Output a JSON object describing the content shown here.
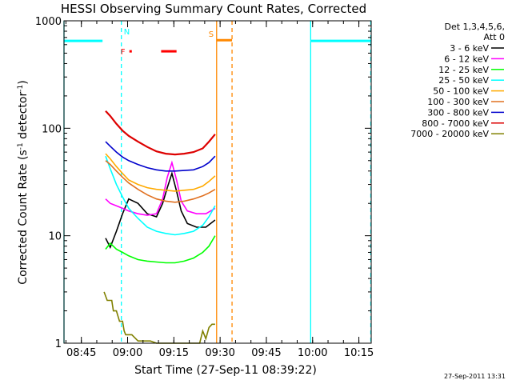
{
  "chart_data": {
    "type": "line",
    "title": "HESSI Observing Summary Count Rates, Corrected",
    "xlabel": "Start Time (27-Sep-11 08:39:22)",
    "ylabel": "Corrected Count Rate (s",
    "ylabel_sup1": "-1",
    "ylabel_mid": " detector",
    "ylabel_sup2": "-1",
    "ylabel_end": ")",
    "y_scale": "log",
    "ylim": [
      1,
      1000
    ],
    "xlim": [
      "08:39:22",
      "10:19:00"
    ],
    "x_ticks": [
      "08:45",
      "09:00",
      "09:15",
      "09:30",
      "09:45",
      "10:00",
      "10:15"
    ],
    "x_tick_minutes": [
      5.63,
      20.63,
      35.63,
      50.63,
      65.63,
      80.63,
      95.63
    ],
    "y_ticks": [
      "1",
      "10",
      "100",
      "1000"
    ],
    "y_tick_values": [
      1,
      10,
      100,
      1000
    ],
    "legend_header": [
      "Det 1,3,4,5,6,",
      "Att 0"
    ],
    "series": [
      {
        "name": "3 - 6 keV",
        "color": "#000000",
        "x": [
          13.5,
          15,
          17,
          19,
          21,
          24,
          27,
          30,
          32,
          33.5,
          35,
          36.5,
          38,
          40,
          43,
          46,
          49
        ],
        "y": [
          9.5,
          7.8,
          11,
          16,
          22,
          20,
          16,
          15,
          20,
          28,
          38,
          26,
          17,
          13,
          12,
          12,
          14
        ]
      },
      {
        "name": "6 - 12 keV",
        "color": "#ff00ff",
        "x": [
          13.5,
          15,
          17,
          19,
          21,
          24,
          27,
          30,
          32,
          33.5,
          35,
          36.5,
          38,
          40,
          43,
          46,
          49
        ],
        "y": [
          22,
          20,
          19,
          18,
          17,
          16,
          15.5,
          16,
          22,
          35,
          48,
          33,
          21,
          17,
          16,
          16,
          18
        ]
      },
      {
        "name": "12 - 25 keV",
        "color": "#00ff00",
        "x": [
          13.5,
          15,
          17,
          19,
          21,
          24,
          27,
          30,
          33,
          36,
          39,
          42,
          45,
          47,
          49
        ],
        "y": [
          7.5,
          8.5,
          7.5,
          7,
          6.5,
          6,
          5.8,
          5.7,
          5.6,
          5.6,
          5.8,
          6.2,
          7,
          8,
          10
        ]
      },
      {
        "name": "25 - 50 keV",
        "color": "#00ffff",
        "x": [
          13.5,
          15,
          17,
          19,
          21,
          24,
          27,
          30,
          33,
          36,
          39,
          42,
          45,
          47,
          49
        ],
        "y": [
          55,
          42,
          30,
          23,
          18,
          14.5,
          12,
          11,
          10.5,
          10.2,
          10.5,
          11,
          12.5,
          15,
          19
        ]
      },
      {
        "name": "50 - 100 keV",
        "color": "#ffaa00",
        "x": [
          13.5,
          15,
          17,
          19,
          21,
          24,
          27,
          30,
          33,
          36,
          39,
          42,
          45,
          47,
          49
        ],
        "y": [
          58,
          52,
          44,
          38,
          33,
          30,
          28,
          27,
          26.5,
          26,
          26.5,
          27,
          29,
          32,
          36
        ]
      },
      {
        "name": "100 - 300 keV",
        "color": "#e07020",
        "x": [
          13.5,
          15,
          17,
          19,
          21,
          24,
          27,
          30,
          33,
          36,
          39,
          42,
          45,
          47,
          49
        ],
        "y": [
          50,
          46,
          40,
          35,
          31,
          27,
          24,
          22,
          21,
          20.5,
          21,
          22,
          23.5,
          25,
          27
        ]
      },
      {
        "name": "300 - 800 keV",
        "color": "#0000cc",
        "x": [
          13.5,
          15,
          17,
          19,
          21,
          24,
          27,
          30,
          33,
          36,
          39,
          42,
          45,
          47,
          49
        ],
        "y": [
          75,
          68,
          60,
          54,
          50,
          46,
          43,
          41,
          40,
          40,
          40.5,
          41,
          44,
          48,
          55
        ]
      },
      {
        "name": "800 - 7000 keV",
        "color": "#dd0000",
        "x": [
          13.5,
          15,
          17,
          19,
          21,
          24,
          27,
          30,
          33,
          36,
          39,
          42,
          45,
          47,
          49
        ],
        "y": [
          145,
          130,
          110,
          95,
          85,
          75,
          67,
          61,
          58,
          57,
          58,
          60,
          65,
          75,
          88
        ]
      },
      {
        "name": "7000 - 20000 keV",
        "color": "#808000",
        "x": [
          13,
          14,
          15.5,
          16,
          17,
          18,
          19,
          19.5,
          20,
          22,
          24,
          26,
          28,
          30,
          32,
          34,
          36,
          38,
          40,
          42,
          44,
          45,
          46,
          47,
          48,
          49
        ],
        "y": [
          3,
          2.5,
          2.5,
          2,
          2,
          1.6,
          1.6,
          1.3,
          1.2,
          1.2,
          1.05,
          1.05,
          1.05,
          1.0,
          1.0,
          1.0,
          1.0,
          1.0,
          1.0,
          1.0,
          1.0,
          1.3,
          1.1,
          1.4,
          1.5,
          1.5
        ]
      }
    ],
    "orbit_segments": [
      {
        "label": "",
        "color": "#00ffff",
        "x0": 0,
        "x1": 12.5,
        "y": 650
      },
      {
        "label": "",
        "color": "#00ffff",
        "x0": 80,
        "x1": 99.5,
        "y": 650
      }
    ],
    "flag_markers": [
      {
        "label": "N",
        "color": "#00ffff",
        "x": 18.6,
        "y": 800
      },
      {
        "label": "F",
        "color": "#ff0000",
        "x": 18.6,
        "y": 520
      },
      {
        "label": "S",
        "color": "#ff8800",
        "x": 49.5,
        "y": 760
      }
    ],
    "flare_bars": [
      {
        "color": "#ff0000",
        "x0": 21.2,
        "x1": 22.0,
        "y": 520
      },
      {
        "color": "#ff0000",
        "x0": 31.5,
        "x1": 36.5,
        "y": 520
      }
    ],
    "saa_bar": {
      "color": "#ff8800",
      "x0": 49.5,
      "x1": 54.5,
      "y": 660
    },
    "vlines": [
      {
        "x": 0,
        "color": "#00ffff",
        "dash": false
      },
      {
        "x": 18.6,
        "color": "#00ffff",
        "dash": true
      },
      {
        "x": 49.5,
        "color": "#ff8800",
        "dash": false
      },
      {
        "x": 54.5,
        "color": "#ff8800",
        "dash": true
      },
      {
        "x": 80,
        "color": "#00ffff",
        "dash": false
      },
      {
        "x": 99.5,
        "color": "#00ffff",
        "dash": true
      }
    ],
    "grid": false,
    "legend_position": "right"
  },
  "footer": {
    "timestamp": "27-Sep-2011 13:31"
  }
}
